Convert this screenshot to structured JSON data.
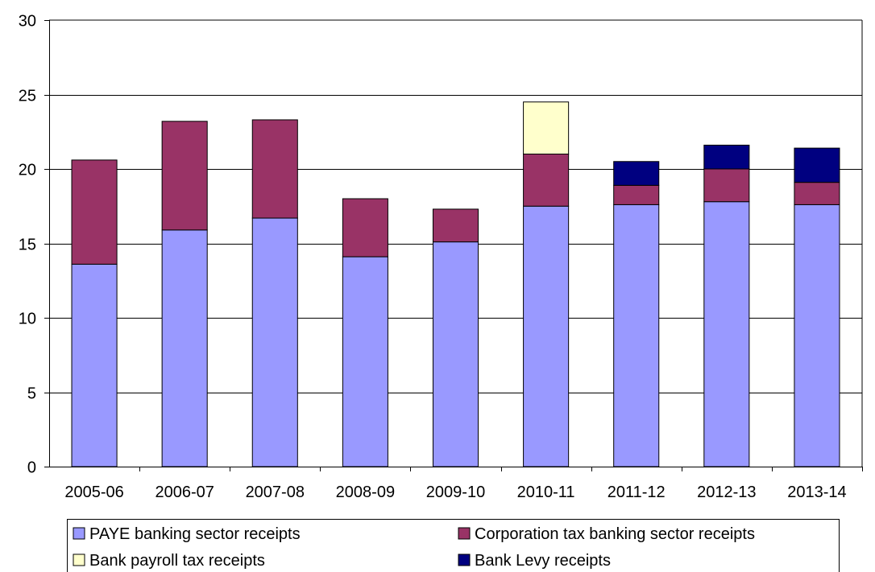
{
  "chart_data": {
    "type": "bar",
    "stacked": true,
    "categories": [
      "2005-06",
      "2006-07",
      "2007-08",
      "2008-09",
      "2009-10",
      "2010-11",
      "2011-12",
      "2012-13",
      "2013-14"
    ],
    "series": [
      {
        "name": "PAYE banking sector receipts",
        "color": "#9999ff",
        "values": [
          13.6,
          15.9,
          16.7,
          14.1,
          15.1,
          17.5,
          17.6,
          17.8,
          17.6
        ]
      },
      {
        "name": "Corporation tax banking sector receipts",
        "color": "#993366",
        "values": [
          7.0,
          7.3,
          6.6,
          3.9,
          2.2,
          3.5,
          1.3,
          2.2,
          1.5
        ]
      },
      {
        "name": "Bank payroll tax receipts",
        "color": "#ffffcc",
        "values": [
          0,
          0,
          0,
          0,
          0,
          3.5,
          0,
          0,
          0
        ]
      },
      {
        "name": "Bank Levy receipts",
        "color": "#000080",
        "values": [
          0,
          0,
          0,
          0,
          0,
          0,
          1.6,
          1.6,
          2.3
        ]
      }
    ],
    "yticks": [
      "0",
      "5",
      "10",
      "15",
      "20",
      "25",
      "30"
    ],
    "ylim": [
      0,
      30
    ],
    "grid": true,
    "legend_position": "bottom"
  }
}
